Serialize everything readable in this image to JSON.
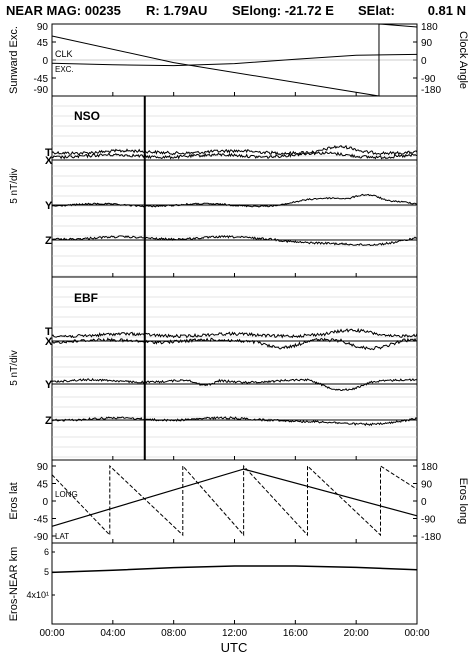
{
  "header": {
    "mission_label": "NEAR MAG: 00235",
    "r_label": "R: 1.79AU",
    "selong_label": "SElong:  -21.72 E",
    "selat_label": "SElat:",
    "selat_value": "0.81 N"
  },
  "x_axis": {
    "label": "UTC",
    "ticks": [
      0,
      4,
      8,
      12,
      16,
      20,
      24
    ],
    "tick_labels": [
      "00:00",
      "04:00",
      "08:00",
      "12:00",
      "16:00",
      "20:00",
      "00:00"
    ]
  },
  "chart_data": [
    {
      "type": "line",
      "panel": "sunward-clock",
      "ylabel": "Sunward Exc.",
      "ylabel_right": "Clock Angle",
      "ylim": [
        -90,
        90
      ],
      "ylim_right": [
        -180,
        180
      ],
      "yticks": [
        -90,
        -45,
        0,
        45,
        90
      ],
      "yticks_right": [
        -180,
        -90,
        0,
        90,
        180
      ],
      "annotations": [
        "CLK",
        "EXC."
      ],
      "series": [
        {
          "name": "CLK",
          "axis": "right",
          "x": [
            0,
            8,
            21.5,
            21.5,
            24
          ],
          "y": [
            120,
            -13,
            -180,
            180,
            165
          ]
        },
        {
          "name": "EXC.",
          "axis": "left",
          "x": [
            0,
            4,
            8,
            12,
            16,
            20,
            24
          ],
          "y": [
            -8,
            -12,
            -14,
            -9,
            2,
            12,
            14
          ]
        }
      ]
    },
    {
      "type": "line",
      "panel": "nso",
      "title": "NSO",
      "ylabel": "5 nT/div",
      "components": [
        "T",
        "X",
        "Y",
        "Z"
      ],
      "event_time": 6.1
    },
    {
      "type": "line",
      "panel": "ebf",
      "title": "EBF",
      "ylabel": "5 nT/div",
      "components": [
        "T",
        "X",
        "Y",
        "Z"
      ],
      "event_time": 6.1
    },
    {
      "type": "line",
      "panel": "eros-angles",
      "ylabel": "Eros lat",
      "ylabel_right": "Eros long",
      "ylim": [
        -90,
        90
      ],
      "ylim_right": [
        -180,
        180
      ],
      "yticks": [
        -90,
        -45,
        0,
        45,
        90
      ],
      "yticks_right": [
        -180,
        -90,
        0,
        90,
        180
      ],
      "annotations": [
        "LONG",
        "LAT"
      ],
      "series": [
        {
          "name": "LAT",
          "axis": "left",
          "x": [
            0,
            12.6,
            24
          ],
          "y": [
            -65,
            82,
            -38
          ]
        },
        {
          "name": "LONG",
          "axis": "right",
          "x": [
            0,
            3.8,
            3.8,
            8.6,
            8.6,
            12.6,
            12.6,
            16.8,
            16.8,
            21.6,
            21.6,
            24
          ],
          "y": [
            135,
            -175,
            180,
            -175,
            180,
            -175,
            180,
            -175,
            180,
            -175,
            180,
            60
          ]
        }
      ]
    },
    {
      "type": "line",
      "panel": "eros-near-distance",
      "ylabel": "Eros-NEAR km",
      "scale": "log",
      "ytick_labels": [
        "6",
        "5",
        "4x10¹"
      ],
      "series": [
        {
          "name": "distance",
          "x": [
            0,
            4,
            8,
            12,
            16,
            20,
            24
          ],
          "y": [
            49.5,
            50.5,
            51.8,
            52.6,
            52.6,
            51.9,
            50.8
          ]
        }
      ]
    }
  ]
}
